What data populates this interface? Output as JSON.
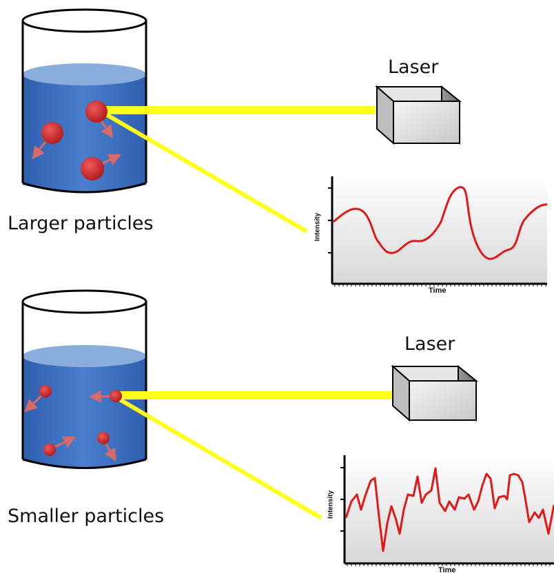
{
  "panels": [
    {
      "caption": "Larger particles",
      "laser_label": "Laser",
      "graph": {
        "xlabel": "Time",
        "ylabel": "Intensity"
      }
    },
    {
      "caption": "Smaller particles",
      "laser_label": "Laser",
      "graph": {
        "xlabel": "Time",
        "ylabel": "Intensity"
      }
    }
  ],
  "colors": {
    "liquid": "#3f72c0",
    "liquid_top": "#8aaedc",
    "particle": "#d42a2a",
    "beam": "#ffff1a",
    "signal": "#e01818"
  }
}
